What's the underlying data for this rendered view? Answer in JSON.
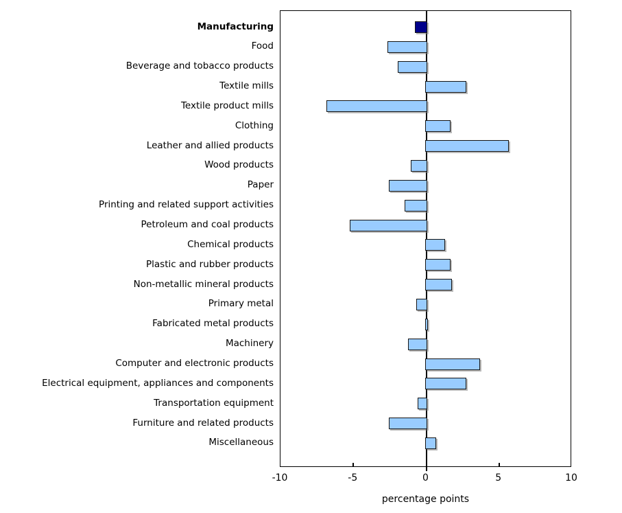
{
  "chart_data": {
    "type": "bar",
    "orientation": "horizontal",
    "title": "",
    "xlabel": "percentage points",
    "ylabel": "",
    "xlim": [
      -10,
      10
    ],
    "xticks": [
      -10,
      -5,
      0,
      5,
      10
    ],
    "grid": false,
    "legend": null,
    "categories": [
      "Manufacturing",
      "Food",
      "Beverage and tobacco products",
      "Textile mills",
      "Textile product mills",
      "Clothing",
      "Leather and allied products",
      "Wood products",
      "Paper",
      "Printing and related support activities",
      "Petroleum and coal products",
      "Chemical products",
      "Plastic and rubber products",
      "Non-metallic mineral products",
      "Primary metal",
      "Fabricated metal products",
      "Machinery",
      "Computer and electronic products",
      "Electrical equipment, appliances and components",
      "Transportation equipment",
      "Furniture and related products",
      "Miscellaneous"
    ],
    "values": [
      -0.7,
      -2.6,
      -1.9,
      2.7,
      -6.8,
      1.6,
      5.6,
      -1.0,
      -2.5,
      -1.4,
      -5.2,
      1.2,
      1.6,
      1.7,
      -0.6,
      0.05,
      -1.2,
      3.6,
      2.7,
      -0.5,
      -2.5,
      0.6
    ],
    "highlight": {
      "category": "Manufacturing",
      "bar_color": "#00008B",
      "bold_label": true
    },
    "colors": {
      "bar_fill": "#99CCFF",
      "highlight_fill": "#00008B",
      "bar_border": "#141414",
      "axis": "#000000",
      "background": "#FFFFFF"
    }
  },
  "axis": {
    "tick_labels": [
      "-10",
      "-5",
      "0",
      "5",
      "10"
    ],
    "xlabel": "percentage points"
  }
}
